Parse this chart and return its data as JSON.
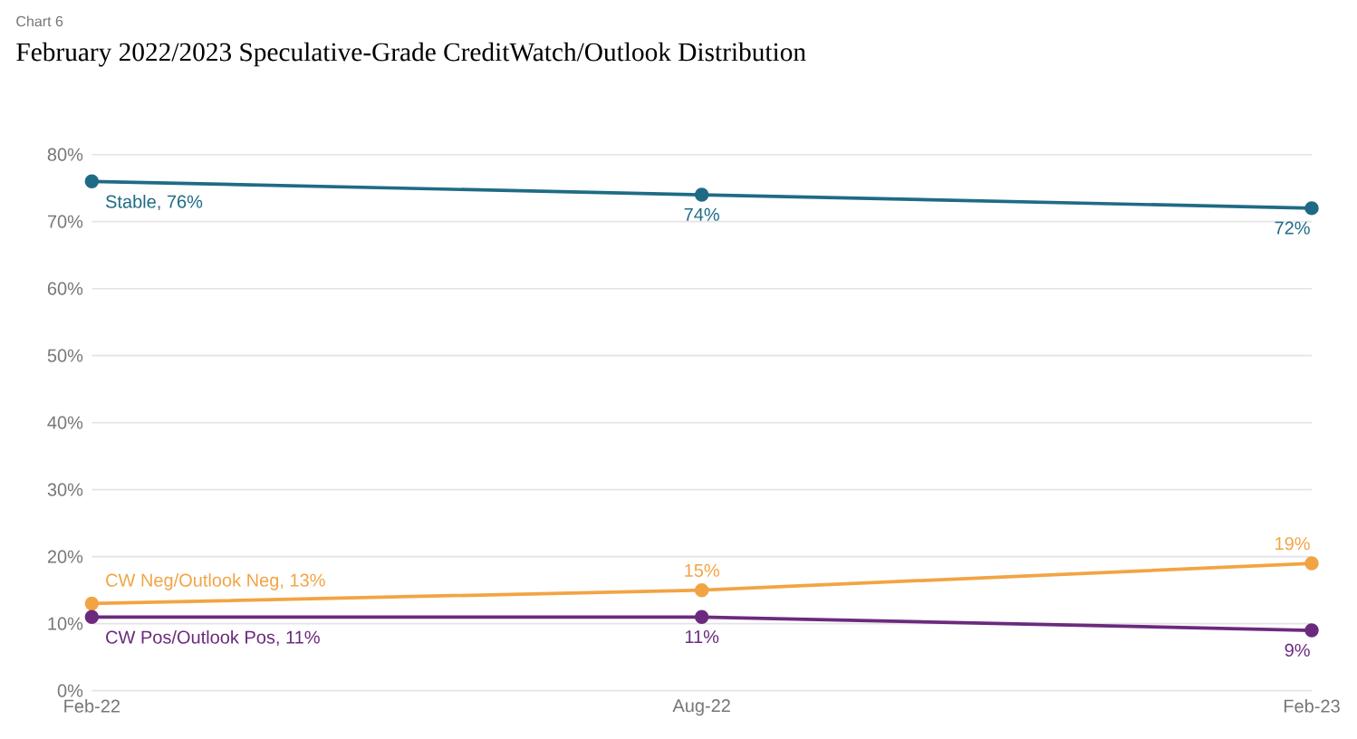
{
  "chart_data": {
    "type": "line",
    "title": "February 2022/2023 Speculative-Grade CreditWatch/Outlook Distribution",
    "annotations": [
      "Chart 6"
    ],
    "categories": [
      "Feb-22",
      "Aug-22",
      "Feb-23"
    ],
    "series": [
      {
        "color": "#1f6b85",
        "values": [
          76,
          74,
          72
        ],
        "value_labels": [
          "Stable, 76%",
          "74%",
          "72%"
        ]
      },
      {
        "color": "#f2a444",
        "values": [
          13,
          15,
          19
        ],
        "value_labels": [
          "CW Neg/Outlook Neg, 13%",
          "15%",
          "19%"
        ]
      },
      {
        "color": "#6b2a7e",
        "values": [
          11,
          11,
          9
        ],
        "value_labels": [
          "CW Pos/Outlook Pos, 11%",
          "11%",
          "9%"
        ]
      }
    ],
    "ylim": [
      0,
      80
    ],
    "yticks": [
      {
        "value": 0,
        "label": "0%"
      },
      {
        "value": 10,
        "label": "10%"
      },
      {
        "value": 20,
        "label": "20%"
      },
      {
        "value": 30,
        "label": "30%"
      },
      {
        "value": 40,
        "label": "40%"
      },
      {
        "value": 50,
        "label": "50%"
      },
      {
        "value": 60,
        "label": "60%"
      },
      {
        "value": 70,
        "label": "70%"
      },
      {
        "value": 80,
        "label": "80%"
      }
    ],
    "grid": "y",
    "marker": "circle",
    "line_style": "solid"
  }
}
